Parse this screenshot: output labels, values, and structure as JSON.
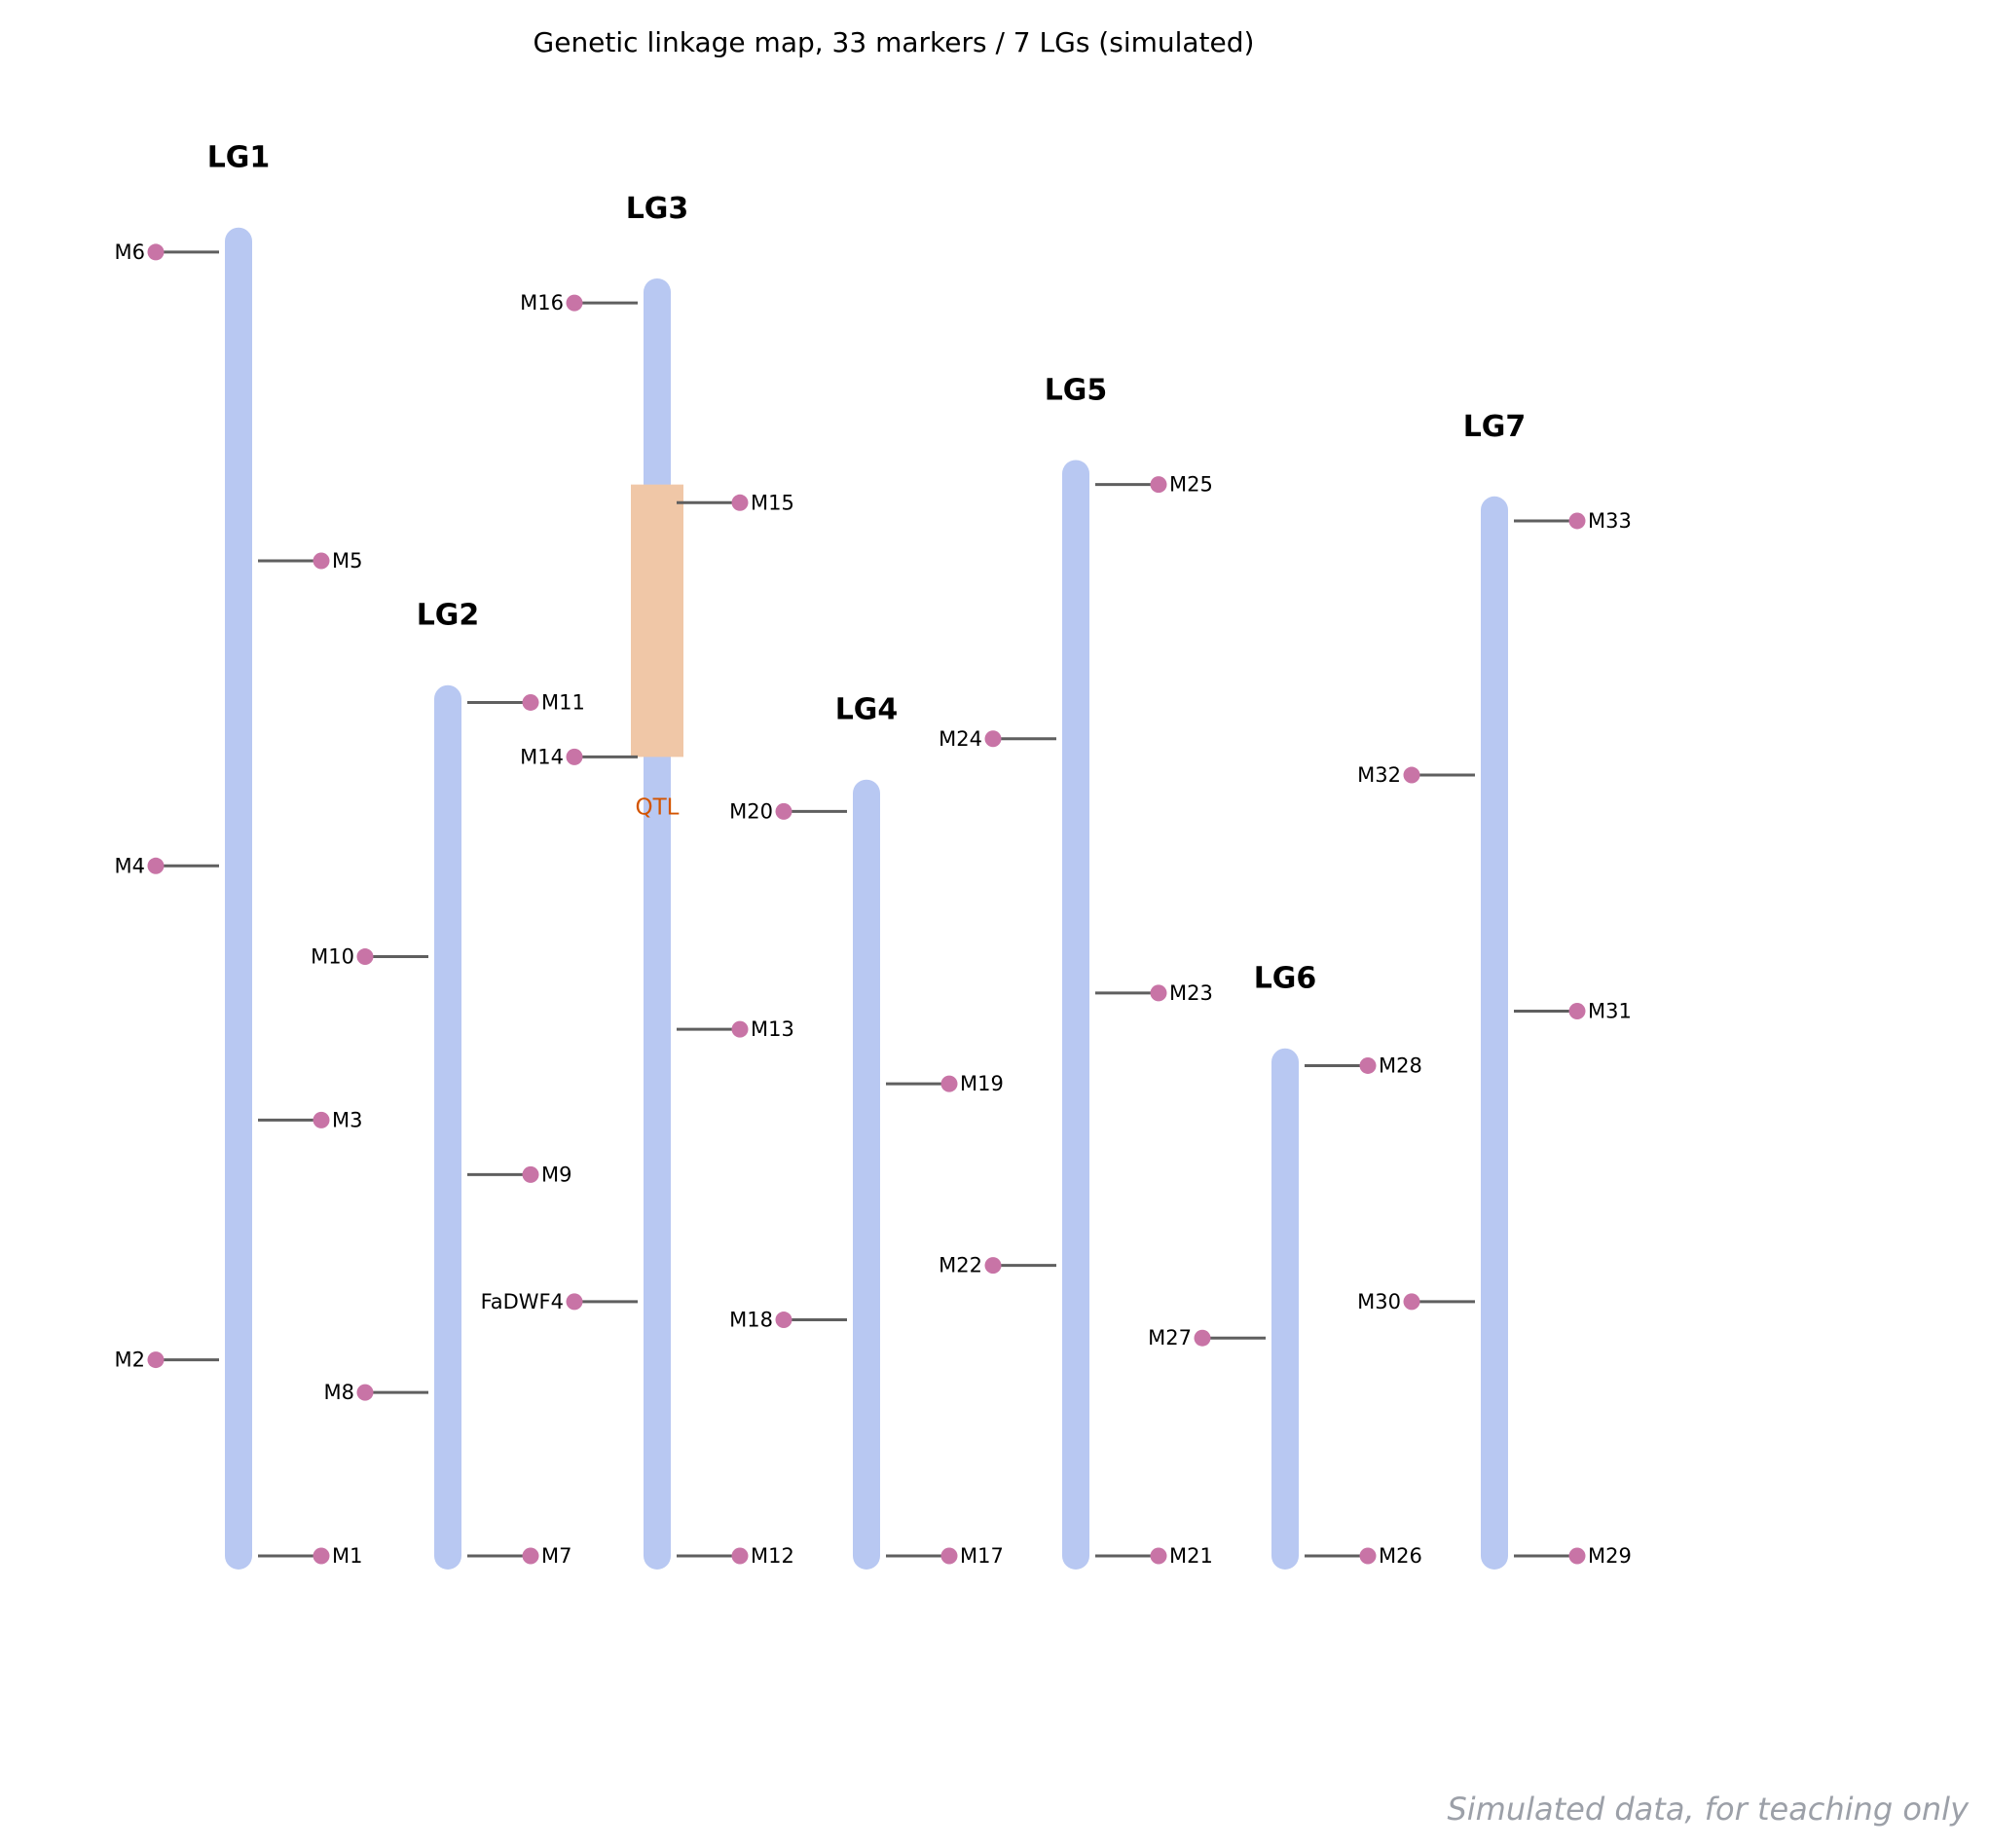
{
  "title": "Genetic linkage map, 33 markers / 7 LGs (simulated)",
  "footnote": "Simulated data, for teaching only",
  "colors": {
    "chromosome": "#b8c8f2",
    "marker_dot": "#c874a6",
    "tick": "#5f5f5f",
    "qtl_fill": "#f0c7a7",
    "qtl_text": "#d35400",
    "footnote": "#9ca0a8"
  },
  "chart_data": {
    "type": "linkage_map",
    "y_unit": "cM",
    "y_reversed": true,
    "linkage_groups": [
      {
        "name": "LG1",
        "length": 181,
        "markers": [
          {
            "name": "M1",
            "pos": 0,
            "side": "right"
          },
          {
            "name": "M2",
            "pos": 27,
            "side": "left"
          },
          {
            "name": "M3",
            "pos": 60,
            "side": "right"
          },
          {
            "name": "M4",
            "pos": 95,
            "side": "left"
          },
          {
            "name": "M5",
            "pos": 137,
            "side": "right"
          },
          {
            "name": "M6",
            "pos": 179.5,
            "side": "left"
          }
        ]
      },
      {
        "name": "LG2",
        "length": 118,
        "markers": [
          {
            "name": "M7",
            "pos": 0,
            "side": "right"
          },
          {
            "name": "M8",
            "pos": 22.5,
            "side": "left"
          },
          {
            "name": "M9",
            "pos": 52.5,
            "side": "right"
          },
          {
            "name": "M10",
            "pos": 82.5,
            "side": "left"
          },
          {
            "name": "M11",
            "pos": 117.5,
            "side": "right"
          }
        ]
      },
      {
        "name": "LG3",
        "length": 174,
        "markers": [
          {
            "name": "M12",
            "pos": 0,
            "side": "right"
          },
          {
            "name": "FaDWF4",
            "pos": 35,
            "side": "left"
          },
          {
            "name": "M13",
            "pos": 72.5,
            "side": "right"
          },
          {
            "name": "M14",
            "pos": 110,
            "side": "left"
          },
          {
            "name": "M15",
            "pos": 145,
            "side": "right"
          },
          {
            "name": "M16",
            "pos": 172.5,
            "side": "left"
          }
        ],
        "qtl": {
          "label": "QTL",
          "start": 110,
          "end": 147.5
        }
      },
      {
        "name": "LG4",
        "length": 105,
        "markers": [
          {
            "name": "M17",
            "pos": 0,
            "side": "right"
          },
          {
            "name": "M18",
            "pos": 32.5,
            "side": "left"
          },
          {
            "name": "M19",
            "pos": 65,
            "side": "right"
          },
          {
            "name": "M20",
            "pos": 102.5,
            "side": "left"
          }
        ]
      },
      {
        "name": "LG5",
        "length": 149,
        "markers": [
          {
            "name": "M21",
            "pos": 0,
            "side": "right"
          },
          {
            "name": "M22",
            "pos": 40,
            "side": "left"
          },
          {
            "name": "M23",
            "pos": 77.5,
            "side": "right"
          },
          {
            "name": "M24",
            "pos": 112.5,
            "side": "left"
          },
          {
            "name": "M25",
            "pos": 147.5,
            "side": "right"
          }
        ]
      },
      {
        "name": "LG6",
        "length": 68,
        "markers": [
          {
            "name": "M26",
            "pos": 0,
            "side": "right"
          },
          {
            "name": "M27",
            "pos": 30,
            "side": "left"
          },
          {
            "name": "M28",
            "pos": 67.5,
            "side": "right"
          }
        ]
      },
      {
        "name": "LG7",
        "length": 144,
        "markers": [
          {
            "name": "M29",
            "pos": 0,
            "side": "right"
          },
          {
            "name": "M30",
            "pos": 35,
            "side": "left"
          },
          {
            "name": "M31",
            "pos": 75,
            "side": "right"
          },
          {
            "name": "M32",
            "pos": 107.5,
            "side": "left"
          },
          {
            "name": "M33",
            "pos": 142.5,
            "side": "right"
          }
        ]
      }
    ]
  }
}
